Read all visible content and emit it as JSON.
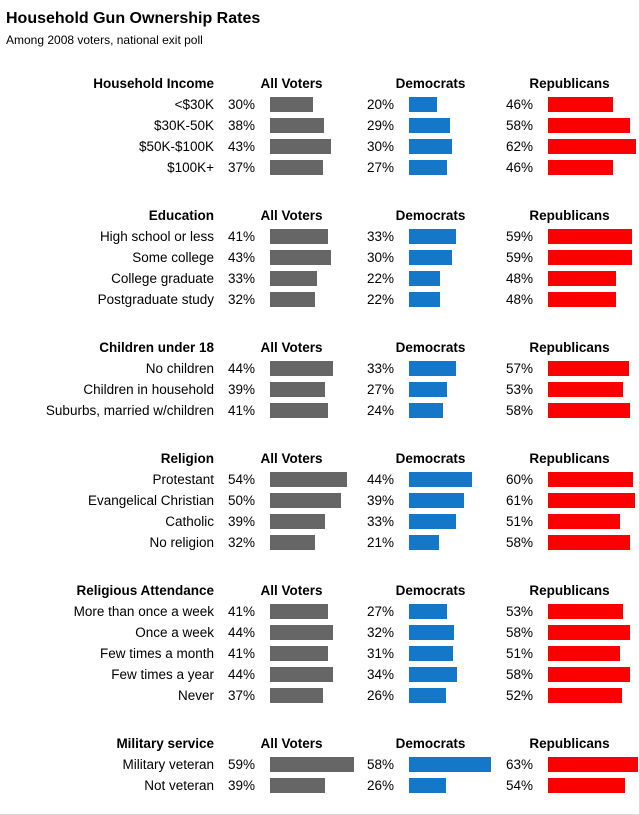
{
  "title": "Household Gun Ownership Rates",
  "subtitle": "Among 2008 voters, national exit poll",
  "column_headers": [
    "All Voters",
    "Democrats",
    "Republicans"
  ],
  "colors": {
    "all_voters": "#666666",
    "democrats": "#1577C8",
    "republicans": "#FB0000"
  },
  "chart_data": {
    "type": "bar",
    "orientation": "horizontal",
    "unit": "%",
    "value_range": [
      0,
      70
    ],
    "title": "Household Gun Ownership Rates",
    "subtitle": "Among 2008 voters, national exit poll",
    "series_names": [
      "All Voters",
      "Democrats",
      "Republicans"
    ],
    "series_colors": [
      "#666666",
      "#1577C8",
      "#FB0000"
    ],
    "sections": [
      {
        "header": "Household Income",
        "rows": [
          {
            "label": "<$30K",
            "values": [
              30,
              20,
              46
            ]
          },
          {
            "label": "$30K-50K",
            "values": [
              38,
              29,
              58
            ]
          },
          {
            "label": "$50K-$100K",
            "values": [
              43,
              30,
              62
            ]
          },
          {
            "label": "$100K+",
            "values": [
              37,
              27,
              46
            ]
          }
        ]
      },
      {
        "header": "Education",
        "rows": [
          {
            "label": "High school or less",
            "values": [
              41,
              33,
              59
            ]
          },
          {
            "label": "Some college",
            "values": [
              43,
              30,
              59
            ]
          },
          {
            "label": "College graduate",
            "values": [
              33,
              22,
              48
            ]
          },
          {
            "label": "Postgraduate study",
            "values": [
              32,
              22,
              48
            ]
          }
        ]
      },
      {
        "header": "Children under 18",
        "rows": [
          {
            "label": "No children",
            "values": [
              44,
              33,
              57
            ]
          },
          {
            "label": "Children in household",
            "values": [
              39,
              27,
              53
            ]
          },
          {
            "label": "Suburbs, married w/children",
            "values": [
              41,
              24,
              58
            ]
          }
        ]
      },
      {
        "header": "Religion",
        "rows": [
          {
            "label": "Protestant",
            "values": [
              54,
              44,
              60
            ]
          },
          {
            "label": "Evangelical Christian",
            "values": [
              50,
              39,
              61
            ]
          },
          {
            "label": "Catholic",
            "values": [
              39,
              33,
              51
            ]
          },
          {
            "label": "No religion",
            "values": [
              32,
              21,
              58
            ]
          }
        ]
      },
      {
        "header": "Religious Attendance",
        "rows": [
          {
            "label": "More than once a week",
            "values": [
              41,
              27,
              53
            ]
          },
          {
            "label": "Once a week",
            "values": [
              44,
              32,
              58
            ]
          },
          {
            "label": "Few times a month",
            "values": [
              41,
              31,
              51
            ]
          },
          {
            "label": "Few times a year",
            "values": [
              44,
              34,
              58
            ]
          },
          {
            "label": "Never",
            "values": [
              37,
              26,
              52
            ]
          }
        ]
      },
      {
        "header": "Military service",
        "rows": [
          {
            "label": "Military veteran",
            "values": [
              59,
              58,
              63
            ]
          },
          {
            "label": "Not veteran",
            "values": [
              39,
              26,
              54
            ]
          }
        ]
      }
    ]
  }
}
